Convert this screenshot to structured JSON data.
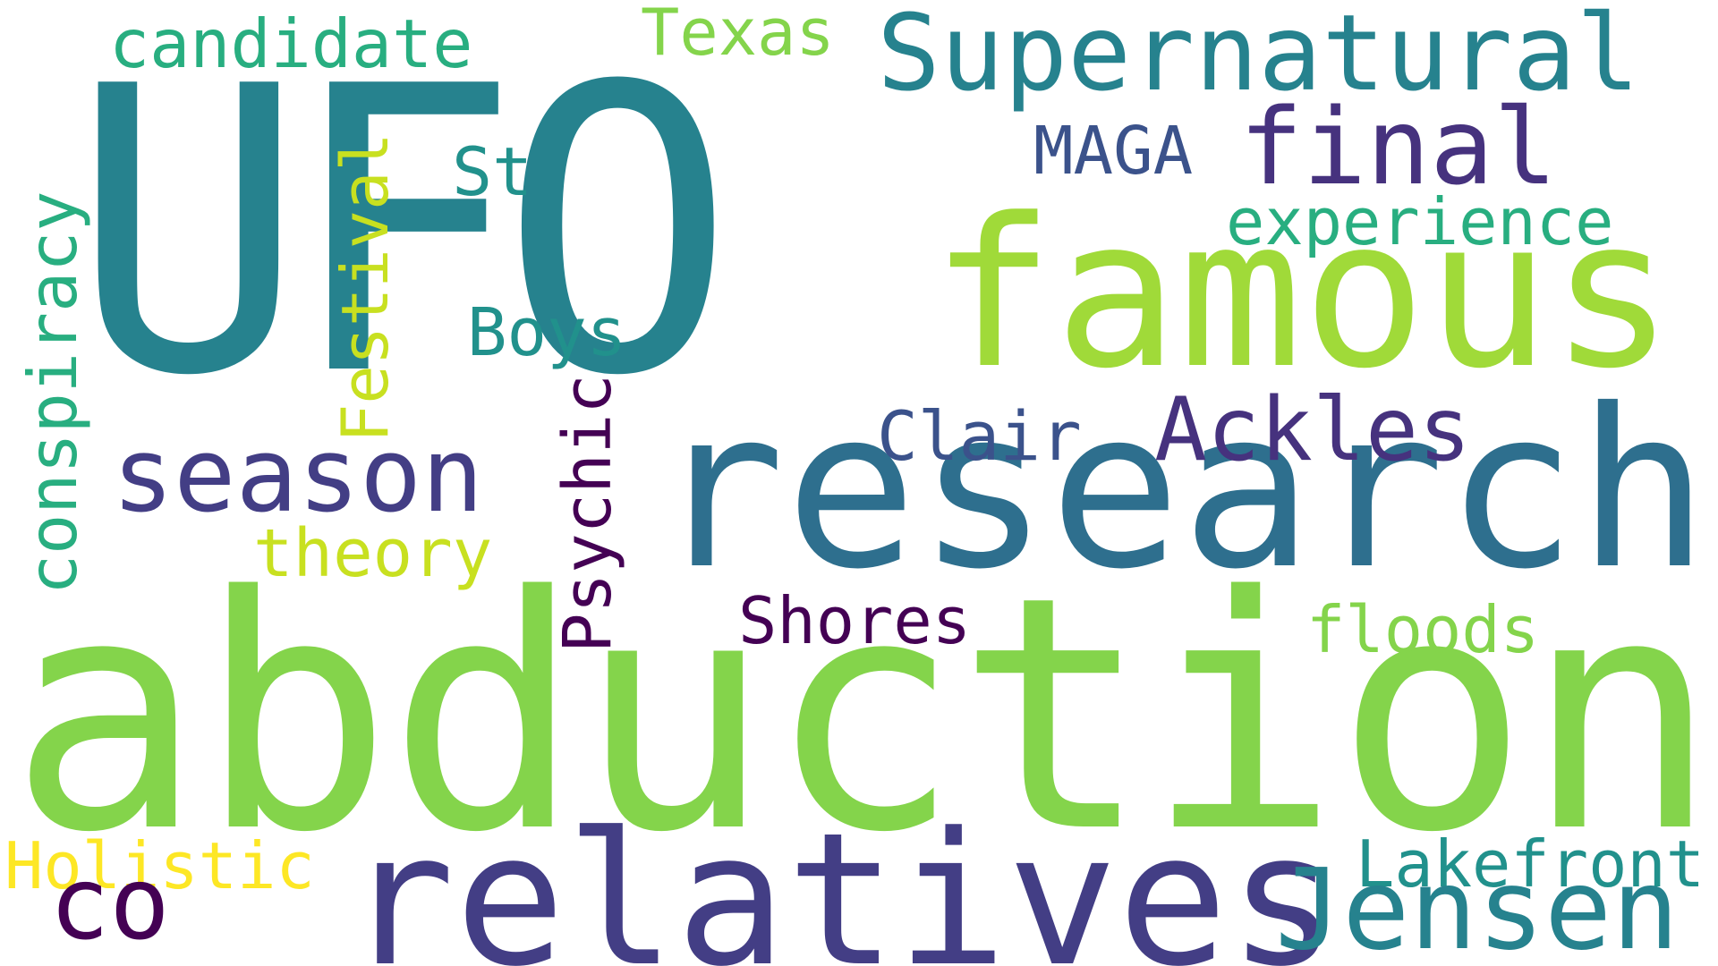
{
  "words": {
    "ufo": "UFO",
    "famous": "famous",
    "research": "research",
    "abduction": "abduction",
    "relatives": "relatives",
    "supernatural": "Supernatural",
    "candidate": "candidate",
    "texas": "Texas",
    "final": "final",
    "maga": "MAGA",
    "st": "St",
    "experience": "experience",
    "conspiracy": "conspiracy",
    "festival": "Festival",
    "boys": "Boys",
    "psychic": "Psychic",
    "clair": "Clair",
    "ackles": "Ackles",
    "season": "season",
    "theory": "theory",
    "shores": "Shores",
    "floods": "floods",
    "holistic": "Holistic",
    "lakefront": "Lakefront",
    "co": "co",
    "jensen": "Jensen"
  },
  "palette": {
    "teal_dark": "#26828e",
    "teal": "#21918c",
    "green_bright": "#84d44b",
    "green_lime": "#a0da39",
    "blue_slate": "#2e6f8e",
    "indigo": "#46327e",
    "indigo_mid": "#433e85",
    "purple_deep": "#440154",
    "navy": "#3b528b",
    "sea_green": "#28ae80",
    "yellow": "#fde725",
    "yellow_green": "#c8e020"
  }
}
